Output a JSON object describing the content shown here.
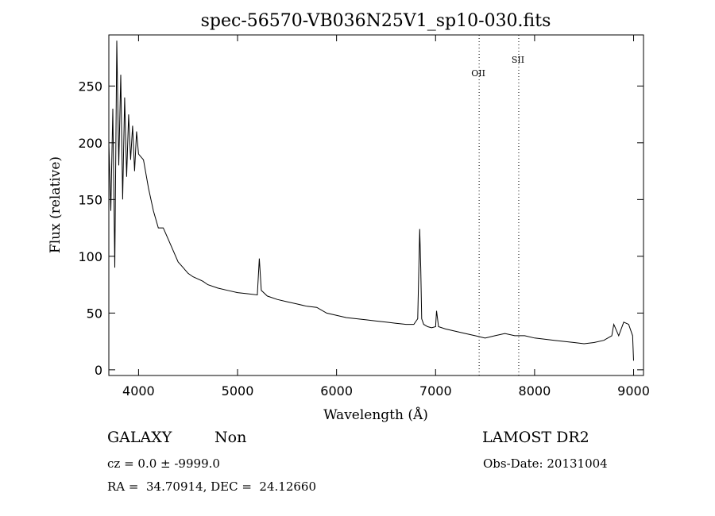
{
  "chart_data": {
    "type": "line",
    "title": "spec-56570-VB036N25V1_sp10-030.fits",
    "xlabel": "Wavelength (Å)",
    "ylabel": "Flux (relative)",
    "xlim": [
      3700,
      9100
    ],
    "ylim": [
      -5,
      295
    ],
    "xticks": [
      4000,
      5000,
      6000,
      7000,
      8000,
      9000
    ],
    "yticks": [
      0,
      50,
      100,
      150,
      200,
      250
    ],
    "grid": false,
    "series": [
      {
        "x": [
          3700,
          3720,
          3740,
          3760,
          3780,
          3800,
          3820,
          3840,
          3860,
          3880,
          3900,
          3920,
          3940,
          3960,
          3980,
          4000,
          4050,
          4100,
          4150,
          4200,
          4250,
          4300,
          4350,
          4400,
          4450,
          4500,
          4550,
          4600,
          4650,
          4700,
          4800,
          4900,
          5000,
          5100,
          5200,
          5220,
          5240,
          5300,
          5400,
          5500,
          5600,
          5700,
          5800,
          5900,
          6000,
          6100,
          6200,
          6300,
          6400,
          6500,
          6600,
          6700,
          6780,
          6820,
          6840,
          6850,
          6860,
          6880,
          6920,
          6960,
          7000,
          7010,
          7030,
          7100,
          7200,
          7300,
          7400,
          7500,
          7600,
          7700,
          7800,
          7900,
          8000,
          8100,
          8200,
          8300,
          8400,
          8500,
          8600,
          8700,
          8780,
          8800,
          8850,
          8900,
          8950,
          8990,
          9000
        ],
        "y": [
          200,
          140,
          230,
          90,
          290,
          180,
          260,
          150,
          240,
          170,
          225,
          185,
          215,
          175,
          210,
          190,
          185,
          160,
          140,
          125,
          125,
          115,
          105,
          95,
          90,
          85,
          82,
          80,
          78,
          75,
          72,
          70,
          68,
          67,
          66,
          98,
          70,
          65,
          62,
          60,
          58,
          56,
          55,
          50,
          48,
          46,
          45,
          44,
          43,
          42,
          41,
          40,
          40,
          45,
          124,
          90,
          45,
          40,
          38,
          37,
          38,
          52,
          38,
          36,
          34,
          32,
          30,
          28,
          30,
          32,
          30,
          30,
          28,
          27,
          26,
          25,
          24,
          23,
          24,
          26,
          30,
          40,
          30,
          42,
          40,
          30,
          8
        ]
      }
    ],
    "annotations": [
      {
        "text": "OII",
        "x": 7440
      },
      {
        "text": "SII",
        "x": 7840
      }
    ],
    "line_color": "#000000"
  },
  "info": {
    "object_type": "GALAXY",
    "subclass": "Non",
    "survey": "LAMOST DR2",
    "redshift": "cz = 0.0 ± -9999.0",
    "obs_date": "Obs-Date: 20131004",
    "coords": "RA =  34.70914, DEC =  24.12660"
  }
}
